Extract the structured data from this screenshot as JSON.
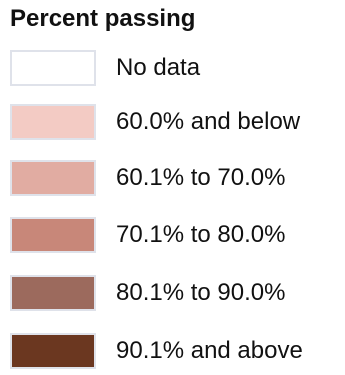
{
  "chart_data": {
    "type": "legend",
    "title": "Percent passing",
    "entries": [
      {
        "label": "No data",
        "color": "#ffffff"
      },
      {
        "label": "60.0% and below",
        "color": "#f3cbc4"
      },
      {
        "label": "60.1% to 70.0%",
        "color": "#e1aca2"
      },
      {
        "label": "70.1% to 80.0%",
        "color": "#c88779"
      },
      {
        "label": "80.1% to 90.0%",
        "color": "#9c6a5d"
      },
      {
        "label": "90.1% and above",
        "color": "#6b3720"
      }
    ]
  }
}
